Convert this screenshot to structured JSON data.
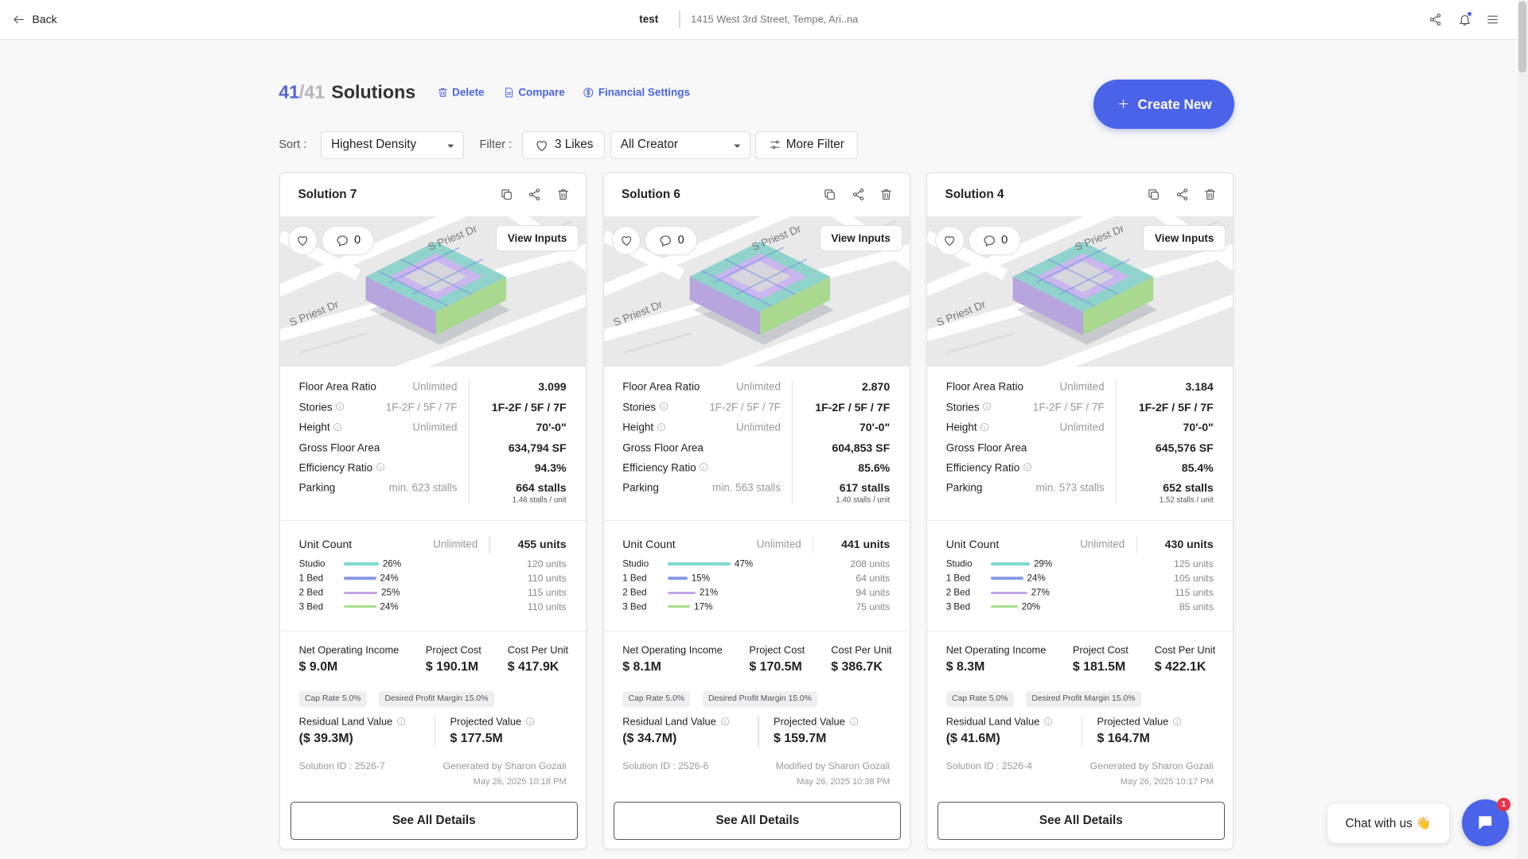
{
  "header": {
    "back": "Back",
    "project": "test",
    "address": "1415 West 3rd Street, Tempe, Ari..na"
  },
  "toolbar": {
    "count": "41",
    "total": "/41",
    "title": "Solutions",
    "actions": [
      "Delete",
      "Compare",
      "Financial Settings"
    ],
    "create": "Create New"
  },
  "filters": {
    "sort_label": "Sort :",
    "sort": "Highest Density",
    "filter_label": "Filter :",
    "likes": "3 Likes",
    "creator": "All Creator",
    "more": "More Filter"
  },
  "card_labels": {
    "metrics": [
      "Floor Area Ratio",
      "Stories",
      "Height",
      "Gross Floor Area",
      "Efficiency Ratio",
      "Parking"
    ],
    "metric_info": [
      false,
      true,
      true,
      false,
      true,
      false
    ],
    "unit_count": "Unit Count",
    "mix": [
      "Studio",
      "1 Bed",
      "2 Bed",
      "3 Bed"
    ],
    "mix_colors": [
      "#7fd8cf",
      "#8a9de6",
      "#c3a5ea",
      "#a9df8c"
    ],
    "financial": [
      "Net Operating Income",
      "Project Cost",
      "Cost Per Unit"
    ],
    "residual": "Residual Land Value",
    "projected": "Projected Value",
    "view_inputs": "View Inputs",
    "details": "See All Details",
    "map_labels": [
      "S Priest Dr",
      "S Priest Dr"
    ]
  },
  "cards": [
    {
      "title": "Solution 7",
      "comments": "0",
      "limits": [
        "Unlimited",
        "1F-2F / 5F / 7F",
        "Unlimited",
        "",
        "",
        "min. 623 stalls"
      ],
      "values": [
        "3.099",
        "1F-2F / 5F / 7F",
        "70'-0\"",
        "634,794 SF",
        "94.3%",
        "664 stalls"
      ],
      "parking_sub": "1.46 stalls / unit",
      "unit_limit": "Unlimited",
      "unit_total": "455 units",
      "mix_pct": [
        26,
        24,
        25,
        24
      ],
      "mix_pct_labels": [
        "26%",
        "24%",
        "25%",
        "24%"
      ],
      "mix_units": [
        "120 units",
        "110 units",
        "115 units",
        "110 units"
      ],
      "financial": [
        "$ 9.0M",
        "$ 190.1M",
        "$ 417.9K"
      ],
      "tags": [
        "Cap Rate 5.0%",
        "Desired Profit Margin 15.0%"
      ],
      "residual": "($ 39.3M)",
      "projected": "$ 177.5M",
      "id": "Solution ID : 2526-7",
      "author": "Generated by Sharon Gozali",
      "date": "May 26, 2025 10:18 PM"
    },
    {
      "title": "Solution 6",
      "comments": "0",
      "limits": [
        "Unlimited",
        "1F-2F / 5F / 7F",
        "Unlimited",
        "",
        "",
        "min. 563 stalls"
      ],
      "values": [
        "2.870",
        "1F-2F / 5F / 7F",
        "70'-0\"",
        "604,853 SF",
        "85.6%",
        "617 stalls"
      ],
      "parking_sub": "1.40 stalls / unit",
      "unit_limit": "Unlimited",
      "unit_total": "441 units",
      "mix_pct": [
        47,
        15,
        21,
        17
      ],
      "mix_pct_labels": [
        "47%",
        "15%",
        "21%",
        "17%"
      ],
      "mix_units": [
        "208 units",
        "64 units",
        "94 units",
        "75 units"
      ],
      "financial": [
        "$ 8.1M",
        "$ 170.5M",
        "$ 386.7K"
      ],
      "tags": [
        "Cap Rate 5.0%",
        "Desired Profit Margin 15.0%"
      ],
      "residual": "($ 34.7M)",
      "projected": "$ 159.7M",
      "id": "Solution ID : 2526-6",
      "author": "Modified by Sharon Gozali",
      "date": "May 26, 2025 10:38 PM"
    },
    {
      "title": "Solution 4",
      "comments": "0",
      "limits": [
        "Unlimited",
        "1F-2F / 5F / 7F",
        "Unlimited",
        "",
        "",
        "min. 573 stalls"
      ],
      "values": [
        "3.184",
        "1F-2F / 5F / 7F",
        "70'-0\"",
        "645,576 SF",
        "85.4%",
        "652 stalls"
      ],
      "parking_sub": "1.52 stalls / unit",
      "unit_limit": "Unlimited",
      "unit_total": "430 units",
      "mix_pct": [
        29,
        24,
        27,
        20
      ],
      "mix_pct_labels": [
        "29%",
        "24%",
        "27%",
        "20%"
      ],
      "mix_units": [
        "125 units",
        "105 units",
        "115 units",
        "85 units"
      ],
      "financial": [
        "$ 8.3M",
        "$ 181.5M",
        "$ 422.1K"
      ],
      "tags": [
        "Cap Rate 5.0%",
        "Desired Profit Margin 15.0%"
      ],
      "residual": "($ 41.6M)",
      "projected": "$ 164.7M",
      "id": "Solution ID : 2526-4",
      "author": "Generated by Sharon Gozali",
      "date": "May 26, 2025 10:17 PM"
    }
  ],
  "chat": {
    "label": "Chat with us 👋",
    "badge": "1"
  }
}
